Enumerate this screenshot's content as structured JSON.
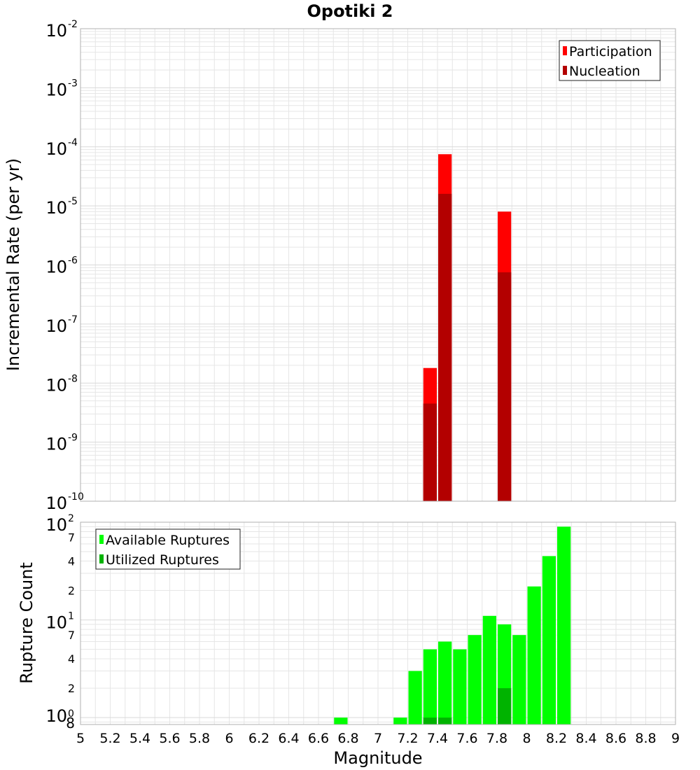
{
  "chart_data": {
    "title": "Opotiki 2",
    "xlabel": "Magnitude",
    "xlim": [
      5,
      9
    ],
    "x_ticks": [
      "5",
      "5.2",
      "5.4",
      "5.6",
      "5.8",
      "6",
      "6.2",
      "6.4",
      "6.6",
      "6.8",
      "7",
      "7.2",
      "7.4",
      "7.6",
      "7.8",
      "8",
      "8.2",
      "8.4",
      "8.6",
      "8.8",
      "9"
    ],
    "bin_width": 0.1,
    "colors": {
      "participation": "#ff0000",
      "nucleation": "#b30000",
      "available": "#00ff00",
      "utilized": "#00b300",
      "grid": "#e6e6e6",
      "frame": "#b0b0b0"
    },
    "top": {
      "type": "bar",
      "ylabel": "Incremental Rate (per yr)",
      "yscale": "log",
      "ylim": [
        1e-10,
        0.01
      ],
      "y_ticks": [
        {
          "base": "10",
          "exp": "-2"
        },
        {
          "base": "10",
          "exp": "-3"
        },
        {
          "base": "10",
          "exp": "-4"
        },
        {
          "base": "10",
          "exp": "-5"
        },
        {
          "base": "10",
          "exp": "-6"
        },
        {
          "base": "10",
          "exp": "-7"
        },
        {
          "base": "10",
          "exp": "-8"
        },
        {
          "base": "10",
          "exp": "-9"
        },
        {
          "base": "10",
          "exp": "-10"
        }
      ],
      "legend": {
        "position": "top-right",
        "entries": [
          "Participation",
          "Nucleation"
        ]
      },
      "series": [
        {
          "name": "Participation",
          "x": [
            7.35,
            7.45,
            7.85
          ],
          "values": [
            1.8e-08,
            7.5e-05,
            8e-06
          ]
        },
        {
          "name": "Nucleation",
          "x": [
            7.35,
            7.45,
            7.85
          ],
          "values": [
            4.5e-09,
            1.6e-05,
            7.5e-07
          ]
        }
      ]
    },
    "bottom": {
      "type": "bar",
      "ylabel": "Rupture Count",
      "yscale": "log",
      "ylim": [
        0.85,
        100
      ],
      "y_ticks": [
        {
          "base": "10",
          "exp": "2",
          "value": 100
        },
        {
          "base": "10",
          "exp": "1",
          "value": 10
        },
        {
          "base": "10",
          "exp": "0",
          "value": 1
        }
      ],
      "y_minor_labels": [
        {
          "text": "7",
          "value": 70
        },
        {
          "text": "4",
          "value": 40
        },
        {
          "text": "2",
          "value": 20
        },
        {
          "text": "7",
          "value": 7
        },
        {
          "text": "4",
          "value": 4
        },
        {
          "text": "2",
          "value": 2
        },
        {
          "text": "8",
          "value": 0.8
        }
      ],
      "legend": {
        "position": "top-left",
        "entries": [
          "Available Ruptures",
          "Utilized Ruptures"
        ]
      },
      "series": [
        {
          "name": "Available Ruptures",
          "x": [
            6.75,
            7.15,
            7.25,
            7.35,
            7.45,
            7.55,
            7.65,
            7.75,
            7.85,
            7.95,
            8.05,
            8.15,
            8.25
          ],
          "values": [
            1,
            1,
            3,
            5,
            6,
            5,
            7,
            11,
            9,
            7,
            22,
            45,
            90
          ]
        },
        {
          "name": "Utilized Ruptures",
          "x": [
            7.35,
            7.45,
            7.85
          ],
          "values": [
            1,
            1,
            2
          ]
        }
      ]
    }
  }
}
